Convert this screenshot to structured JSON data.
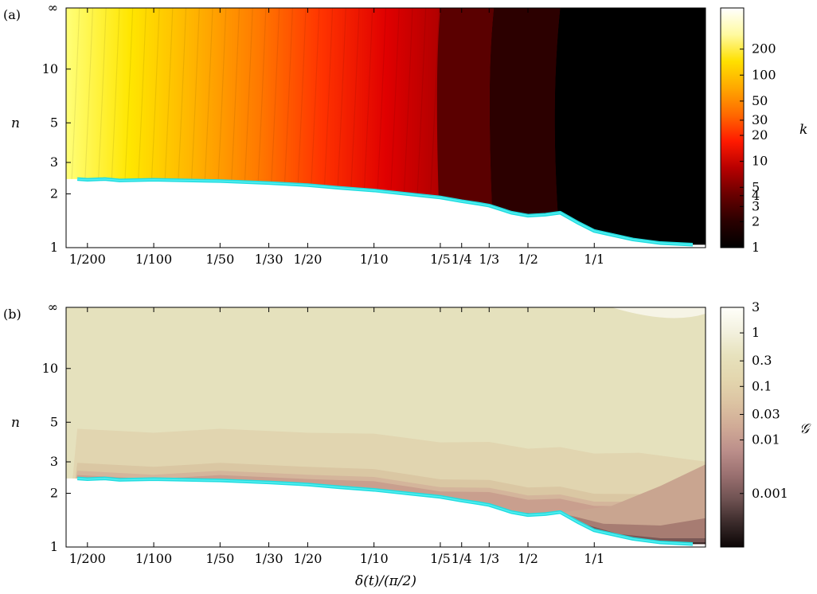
{
  "chart_data": [
    {
      "panel_label": "(a)",
      "type": "heatmap",
      "title": "",
      "xlabel": "",
      "ylabel": "n",
      "x_scale": "log",
      "y_scale": "log",
      "x_tick_labels": [
        "1/200",
        "1/100",
        "1/50",
        "1/30",
        "1/20",
        "1/10",
        "1/5",
        "1/4",
        "1/3",
        "1/2",
        "1/1"
      ],
      "x_ticks": [
        0.005,
        0.01,
        0.02,
        0.0333,
        0.05,
        0.1,
        0.2,
        0.25,
        0.3333,
        0.5,
        1.0
      ],
      "y_tick_labels": [
        "1",
        "2",
        "3",
        "5",
        "10",
        "∞"
      ],
      "y_ticks": [
        1,
        2,
        3,
        5,
        10,
        "∞"
      ],
      "colorbar": {
        "label": "k",
        "scale": "log",
        "tick_labels": [
          "1",
          "2",
          "3",
          "4",
          "5",
          "10",
          "20",
          "30",
          "50",
          "100",
          "200"
        ],
        "ticks": [
          1,
          2,
          3,
          4,
          5,
          10,
          20,
          30,
          50,
          100,
          200
        ],
        "range": [
          1,
          600
        ],
        "colormap": [
          "#000000",
          "#2a0000",
          "#6a0000",
          "#b80000",
          "#ff1a00",
          "#ff6a00",
          "#ffa800",
          "#ffe000",
          "#fffaa0",
          "#ffffff"
        ]
      },
      "boundary": {
        "name": "",
        "color": "#22dde0",
        "points": [
          {
            "x": 0.0045,
            "y": 2.42
          },
          {
            "x": 0.005,
            "y": 2.4
          },
          {
            "x": 0.006,
            "y": 2.42
          },
          {
            "x": 0.007,
            "y": 2.38
          },
          {
            "x": 0.01,
            "y": 2.4
          },
          {
            "x": 0.02,
            "y": 2.36
          },
          {
            "x": 0.0333,
            "y": 2.3
          },
          {
            "x": 0.05,
            "y": 2.24
          },
          {
            "x": 0.07,
            "y": 2.16
          },
          {
            "x": 0.1,
            "y": 2.09
          },
          {
            "x": 0.14,
            "y": 2.0
          },
          {
            "x": 0.2,
            "y": 1.91
          },
          {
            "x": 0.25,
            "y": 1.82
          },
          {
            "x": 0.3,
            "y": 1.76
          },
          {
            "x": 0.3333,
            "y": 1.72
          },
          {
            "x": 0.42,
            "y": 1.57
          },
          {
            "x": 0.5,
            "y": 1.51
          },
          {
            "x": 0.6,
            "y": 1.53
          },
          {
            "x": 0.7,
            "y": 1.57
          },
          {
            "x": 0.85,
            "y": 1.37
          },
          {
            "x": 1.0,
            "y": 1.24
          },
          {
            "x": 1.5,
            "y": 1.11
          },
          {
            "x": 2.0,
            "y": 1.06
          },
          {
            "x": 2.8,
            "y": 1.04
          }
        ]
      }
    },
    {
      "panel_label": "(b)",
      "type": "heatmap",
      "title": "",
      "xlabel": "δ(t)/(π/2)",
      "ylabel": "n",
      "x_scale": "log",
      "y_scale": "log",
      "x_tick_labels": [
        "1/200",
        "1/100",
        "1/50",
        "1/30",
        "1/20",
        "1/10",
        "1/5",
        "1/4",
        "1/3",
        "1/2",
        "1/1"
      ],
      "x_ticks": [
        0.005,
        0.01,
        0.02,
        0.0333,
        0.05,
        0.1,
        0.2,
        0.25,
        0.3333,
        0.5,
        1.0
      ],
      "y_tick_labels": [
        "1",
        "2",
        "3",
        "5",
        "10",
        "∞"
      ],
      "y_ticks": [
        1,
        2,
        3,
        5,
        10,
        "∞"
      ],
      "colorbar": {
        "label": "𝒢",
        "scale": "log",
        "tick_labels": [
          "0.001",
          "0.01",
          "0.03",
          "0.1",
          "0.3",
          "1",
          "3"
        ],
        "ticks": [
          0.001,
          0.01,
          0.03,
          0.1,
          0.3,
          1,
          3
        ],
        "range": [
          0.0001,
          3
        ],
        "colormap": [
          "#0c0606",
          "#3a2a2a",
          "#6f5252",
          "#9a7070",
          "#bb8e8a",
          "#d0aa96",
          "#dcc3a2",
          "#e3d6ae",
          "#e7e2bd",
          "#f3f1df",
          "#fffffa"
        ]
      },
      "boundary": {
        "name": "",
        "color": "#22dde0",
        "points": [
          {
            "x": 0.0045,
            "y": 2.42
          },
          {
            "x": 0.005,
            "y": 2.4
          },
          {
            "x": 0.006,
            "y": 2.42
          },
          {
            "x": 0.007,
            "y": 2.38
          },
          {
            "x": 0.01,
            "y": 2.4
          },
          {
            "x": 0.02,
            "y": 2.36
          },
          {
            "x": 0.0333,
            "y": 2.3
          },
          {
            "x": 0.05,
            "y": 2.24
          },
          {
            "x": 0.07,
            "y": 2.16
          },
          {
            "x": 0.1,
            "y": 2.09
          },
          {
            "x": 0.14,
            "y": 2.0
          },
          {
            "x": 0.2,
            "y": 1.91
          },
          {
            "x": 0.25,
            "y": 1.82
          },
          {
            "x": 0.3,
            "y": 1.76
          },
          {
            "x": 0.3333,
            "y": 1.72
          },
          {
            "x": 0.42,
            "y": 1.57
          },
          {
            "x": 0.5,
            "y": 1.51
          },
          {
            "x": 0.6,
            "y": 1.53
          },
          {
            "x": 0.7,
            "y": 1.57
          },
          {
            "x": 0.85,
            "y": 1.37
          },
          {
            "x": 1.0,
            "y": 1.24
          },
          {
            "x": 1.5,
            "y": 1.11
          },
          {
            "x": 2.0,
            "y": 1.06
          },
          {
            "x": 2.8,
            "y": 1.04
          }
        ]
      }
    }
  ]
}
